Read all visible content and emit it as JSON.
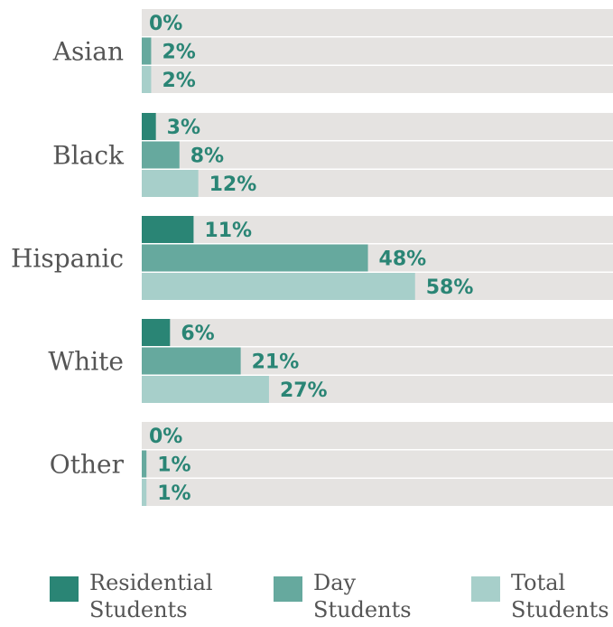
{
  "colors": {
    "track": "#e5e3e1",
    "residential": "#2a8575",
    "day": "#66a99e",
    "total": "#a7cfca",
    "value_text": "#2a8575"
  },
  "chart_data": {
    "type": "bar",
    "orientation": "horizontal",
    "categories": [
      "Asian",
      "Black",
      "Hispanic",
      "White",
      "Other"
    ],
    "series": [
      {
        "name": "Residential Students",
        "values": [
          0,
          3,
          11,
          6,
          0
        ]
      },
      {
        "name": "Day Students",
        "values": [
          2,
          8,
          48,
          21,
          1
        ]
      },
      {
        "name": "Total Students",
        "values": [
          2,
          12,
          58,
          27,
          1
        ]
      }
    ],
    "value_suffix": "%",
    "xlim": [
      0,
      100
    ],
    "legend_position": "bottom",
    "grid": false
  },
  "legend": [
    {
      "label": "Residential\nStudents"
    },
    {
      "label": "Day\nStudents"
    },
    {
      "label": "Total\nStudents"
    }
  ]
}
